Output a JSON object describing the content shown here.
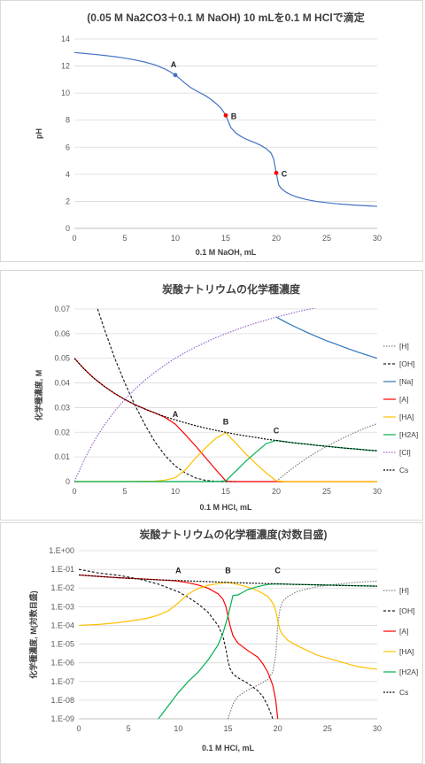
{
  "chart_data": [
    {
      "id": "ph",
      "type": "line",
      "title": "(0.05 M Na2CO3＋0.1 M NaOH) 10 mLを0.1 M HClで滴定",
      "xlabel": "0.1 M NaOH, mL",
      "ylabel": "pH",
      "xlim": [
        0,
        30
      ],
      "ylim": [
        0,
        14
      ],
      "xticks": [
        "0",
        "5",
        "10",
        "15",
        "20",
        "25",
        "30"
      ],
      "yticks": [
        "0",
        "2",
        "4",
        "6",
        "8",
        "10",
        "12",
        "14"
      ],
      "grid": true,
      "legend": "none",
      "series": [
        {
          "color": "#4472c4",
          "x": [
            0,
            1,
            2,
            3,
            4,
            5,
            6,
            7,
            8,
            9,
            9.5,
            10,
            10.5,
            11,
            11.5,
            12,
            12.5,
            13,
            13.5,
            14,
            14.5,
            14.75,
            15,
            15.25,
            15.5,
            16,
            16.5,
            17,
            17.5,
            18,
            18.5,
            19,
            19.5,
            19.75,
            20,
            20.25,
            20.5,
            21,
            21.5,
            22,
            23,
            24,
            25,
            26,
            27,
            28,
            29,
            30
          ],
          "y": [
            13.0,
            12.93,
            12.86,
            12.78,
            12.69,
            12.58,
            12.45,
            12.29,
            12.08,
            11.77,
            11.57,
            11.33,
            11.03,
            10.71,
            10.42,
            10.2,
            10.0,
            9.8,
            9.55,
            9.25,
            8.9,
            8.65,
            8.35,
            7.9,
            7.45,
            7.05,
            6.8,
            6.6,
            6.45,
            6.3,
            6.12,
            5.9,
            5.55,
            5.1,
            4.1,
            3.2,
            2.95,
            2.66,
            2.47,
            2.33,
            2.13,
            1.99,
            1.9,
            1.82,
            1.76,
            1.71,
            1.67,
            1.63
          ]
        }
      ],
      "markers": [
        {
          "label": "A",
          "x": 10,
          "y": 11.33,
          "color": "#4472c4"
        },
        {
          "label": "B",
          "x": 15,
          "y": 8.35,
          "color": "#ff0000"
        },
        {
          "label": "C",
          "x": 20,
          "y": 4.1,
          "color": "#ff0000"
        }
      ]
    },
    {
      "id": "conc",
      "type": "line",
      "title": "炭酸ナトリウムの化学種濃度",
      "xlabel": "0.1 M HCl, mL",
      "ylabel": "化学種濃度, M",
      "xlim": [
        0,
        30
      ],
      "ylim": [
        0,
        0.07
      ],
      "xticks": [
        "0",
        "5",
        "10",
        "15",
        "20",
        "25",
        "30"
      ],
      "yticks": [
        "0",
        "0.01",
        "0.02",
        "0.03",
        "0.04",
        "0.05",
        "0.06",
        "0.07"
      ],
      "grid": true,
      "legend": "right",
      "series": [
        {
          "name": "[H]",
          "color": "#808080",
          "dash": "1.5,1.5",
          "x": [
            0,
            19.9,
            20,
            20.5,
            21,
            22,
            23,
            24,
            25,
            26,
            27,
            28,
            29,
            30
          ],
          "y": [
            0,
            0,
            0.0001,
            0.0018,
            0.0035,
            0.0066,
            0.0094,
            0.012,
            0.0143,
            0.0164,
            0.0184,
            0.0203,
            0.022,
            0.0235
          ]
        },
        {
          "name": "[OH]",
          "color": "#222222",
          "dash": "3,2",
          "x": [
            2.3,
            3,
            4,
            5,
            6,
            7,
            8,
            9,
            10,
            11,
            12,
            13,
            14,
            15,
            16
          ],
          "y": [
            0.07,
            0.0615,
            0.05,
            0.04,
            0.031,
            0.023,
            0.016,
            0.0105,
            0.0063,
            0.0035,
            0.0015,
            0.0005,
            0.0001,
            0,
            0
          ]
        },
        {
          "name": "[Na]",
          "color": "#2e75b6",
          "x": [
            20,
            21,
            22,
            23,
            24,
            25,
            26,
            27,
            28,
            29,
            30
          ],
          "y": [
            0.0667,
            0.0645,
            0.0625,
            0.0606,
            0.0588,
            0.0571,
            0.0556,
            0.0541,
            0.0526,
            0.0513,
            0.05
          ]
        },
        {
          "name": "[A]",
          "color": "#ff0000",
          "x": [
            0,
            1,
            2,
            3,
            4,
            5,
            6,
            7,
            8,
            9,
            10,
            11,
            12,
            13,
            14,
            15,
            15.5,
            16,
            17,
            18,
            19,
            20,
            30
          ],
          "y": [
            0.05,
            0.0455,
            0.0417,
            0.0385,
            0.0357,
            0.0333,
            0.0312,
            0.0294,
            0.0278,
            0.026,
            0.0233,
            0.019,
            0.0145,
            0.0097,
            0.0049,
            0.0003,
            0,
            0,
            0,
            0,
            0,
            0,
            0
          ]
        },
        {
          "name": "[HA]",
          "color": "#ffc000",
          "x": [
            0,
            5,
            8,
            9,
            10,
            11,
            12,
            13,
            14,
            15,
            16,
            17,
            18,
            19,
            20,
            21,
            30
          ],
          "y": [
            0,
            0,
            0.0002,
            0.0006,
            0.0016,
            0.0048,
            0.0095,
            0.0137,
            0.0175,
            0.0198,
            0.0156,
            0.0112,
            0.0072,
            0.0035,
            0.0003,
            0,
            0
          ]
        },
        {
          "name": "[H2A]",
          "color": "#00b050",
          "x": [
            0,
            14,
            15,
            16,
            17,
            18,
            19,
            20,
            21,
            22,
            23,
            24,
            25,
            26,
            27,
            28,
            29,
            30
          ],
          "y": [
            0,
            0,
            0.0003,
            0.0043,
            0.0083,
            0.0119,
            0.0154,
            0.0167,
            0.0161,
            0.0156,
            0.0152,
            0.0147,
            0.0143,
            0.0139,
            0.0135,
            0.0132,
            0.0128,
            0.0125
          ]
        },
        {
          "name": "[Cl]",
          "color": "#9966cc",
          "dash": "1.5,1.5",
          "x": [
            0,
            1,
            2,
            3,
            4,
            5,
            6,
            7,
            8,
            9,
            10,
            11,
            12,
            13,
            14,
            15,
            16,
            17,
            18,
            19,
            20,
            21,
            22,
            23,
            24
          ],
          "y": [
            0,
            0.0091,
            0.0167,
            0.0231,
            0.0286,
            0.0333,
            0.0375,
            0.0412,
            0.0444,
            0.0474,
            0.05,
            0.0524,
            0.0545,
            0.0565,
            0.0583,
            0.06,
            0.0615,
            0.063,
            0.0643,
            0.0655,
            0.0667,
            0.0677,
            0.0688,
            0.0697,
            0.0706
          ]
        },
        {
          "name": "Cs",
          "color": "#000000",
          "dash": "2,1.5",
          "x": [
            0,
            1,
            2,
            3,
            4,
            5,
            6,
            7,
            8,
            9,
            10,
            11,
            12,
            13,
            14,
            15,
            16,
            17,
            18,
            19,
            20,
            21,
            22,
            23,
            24,
            25,
            26,
            27,
            28,
            29,
            30
          ],
          "y": [
            0.05,
            0.0455,
            0.0417,
            0.0385,
            0.0357,
            0.0333,
            0.0312,
            0.0294,
            0.0278,
            0.0263,
            0.025,
            0.0238,
            0.0227,
            0.0217,
            0.0208,
            0.02,
            0.0192,
            0.0185,
            0.0179,
            0.0172,
            0.0167,
            0.0161,
            0.0156,
            0.0152,
            0.0147,
            0.0143,
            0.0139,
            0.0135,
            0.0132,
            0.0128,
            0.0125
          ]
        }
      ],
      "markers": [
        {
          "label": "A",
          "x": 10,
          "y": 0.0262
        },
        {
          "label": "B",
          "x": 15,
          "y": 0.0232
        },
        {
          "label": "C",
          "x": 20,
          "y": 0.0195
        }
      ]
    },
    {
      "id": "logconc",
      "type": "line",
      "title": "炭酸ナトリウムの化学種濃度(対数目盛)",
      "xlabel": "0.1 M HCl, mL",
      "ylabel": "化学種濃度, M(対数目盛)",
      "xlim": [
        0,
        30
      ],
      "ylim_log10": [
        -9,
        0
      ],
      "yscale": "log",
      "xticks": [
        "0",
        "5",
        "10",
        "15",
        "20",
        "25",
        "30"
      ],
      "yticks": [
        "1.E-09",
        "1.E-08",
        "1.E-07",
        "1.E-06",
        "1.E-05",
        "1.E-04",
        "1.E-03",
        "1.E-02",
        "1.E-01",
        "1.E+00"
      ],
      "grid": true,
      "legend": "right",
      "series": [
        {
          "name": "[H]",
          "color": "#808080",
          "dash": "1.5,1.5",
          "x": [
            15,
            15.5,
            16,
            17,
            18,
            19,
            19.5,
            19.8,
            20,
            20.2,
            20.5,
            21,
            22,
            24,
            26,
            28,
            30
          ],
          "log10": [
            -9,
            -8.2,
            -7.8,
            -7.45,
            -7.2,
            -6.9,
            -6.5,
            -5.6,
            -4.0,
            -3.2,
            -2.7,
            -2.46,
            -2.18,
            -1.92,
            -1.79,
            -1.69,
            -1.63
          ]
        },
        {
          "name": "[OH]",
          "color": "#222222",
          "dash": "3,2",
          "x": [
            0,
            2,
            4,
            6,
            8,
            10,
            11,
            12,
            13,
            14,
            14.5,
            14.8,
            15,
            15.2,
            15.5,
            16,
            17,
            18,
            18.5,
            19,
            19.3,
            19.5
          ],
          "log10": [
            -1.0,
            -1.2,
            -1.32,
            -1.51,
            -1.79,
            -2.2,
            -2.5,
            -2.85,
            -3.3,
            -4.0,
            -4.6,
            -5.3,
            -5.9,
            -6.3,
            -6.6,
            -6.8,
            -7.1,
            -7.5,
            -7.8,
            -8.3,
            -8.7,
            -9.0
          ]
        },
        {
          "name": "[A]",
          "color": "#ff0000",
          "x": [
            0,
            2,
            4,
            6,
            8,
            9,
            10,
            11,
            12,
            13,
            14,
            14.5,
            14.8,
            15,
            15.2,
            15.5,
            16,
            17,
            18,
            18.5,
            19,
            19.5,
            19.8,
            20
          ],
          "log10": [
            -1.3,
            -1.38,
            -1.45,
            -1.5,
            -1.56,
            -1.59,
            -1.63,
            -1.72,
            -1.84,
            -2.01,
            -2.31,
            -2.6,
            -3.0,
            -3.5,
            -4.0,
            -4.55,
            -4.95,
            -5.35,
            -5.7,
            -6.05,
            -6.5,
            -7.2,
            -8.0,
            -9.0
          ]
        },
        {
          "name": "[HA]",
          "color": "#ffc000",
          "x": [
            0,
            2,
            4,
            6,
            7,
            8,
            9,
            10,
            11,
            12,
            13,
            14,
            15,
            16,
            17,
            18,
            19,
            19.5,
            19.8,
            20,
            20.2,
            20.5,
            21,
            22,
            24,
            26,
            28,
            30
          ],
          "log10": [
            -4.0,
            -3.95,
            -3.85,
            -3.7,
            -3.6,
            -3.45,
            -3.22,
            -2.8,
            -2.32,
            -2.02,
            -1.86,
            -1.76,
            -1.7,
            -1.81,
            -1.95,
            -2.14,
            -2.45,
            -2.8,
            -3.2,
            -3.75,
            -4.2,
            -4.5,
            -4.8,
            -5.1,
            -5.6,
            -5.9,
            -6.2,
            -6.35
          ]
        },
        {
          "name": "[H2A]",
          "color": "#00b050",
          "x": [
            8,
            9,
            10,
            11,
            12,
            13,
            14,
            14.5,
            15,
            15.5,
            16,
            17,
            18,
            19,
            20,
            22,
            24,
            26,
            28,
            30
          ],
          "log10": [
            -9.0,
            -8.3,
            -7.6,
            -7.0,
            -6.5,
            -5.85,
            -5.05,
            -4.4,
            -3.5,
            -2.4,
            -2.37,
            -2.08,
            -1.92,
            -1.81,
            -1.78,
            -1.81,
            -1.83,
            -1.85,
            -1.88,
            -1.9
          ]
        },
        {
          "name": "Cs",
          "color": "#000000",
          "dash": "2,1.5",
          "x": [
            0,
            2,
            4,
            6,
            8,
            10,
            12,
            14,
            16,
            18,
            20,
            22,
            24,
            26,
            28,
            30
          ],
          "log10": [
            -1.3,
            -1.38,
            -1.45,
            -1.51,
            -1.56,
            -1.6,
            -1.64,
            -1.68,
            -1.72,
            -1.75,
            -1.78,
            -1.81,
            -1.83,
            -1.86,
            -1.88,
            -1.9
          ]
        }
      ],
      "markers": [
        {
          "label": "A",
          "x": 10,
          "log10": -1.2
        },
        {
          "label": "B",
          "x": 15,
          "log10": -1.2
        },
        {
          "label": "C",
          "x": 20,
          "log10": -1.2
        }
      ]
    }
  ]
}
